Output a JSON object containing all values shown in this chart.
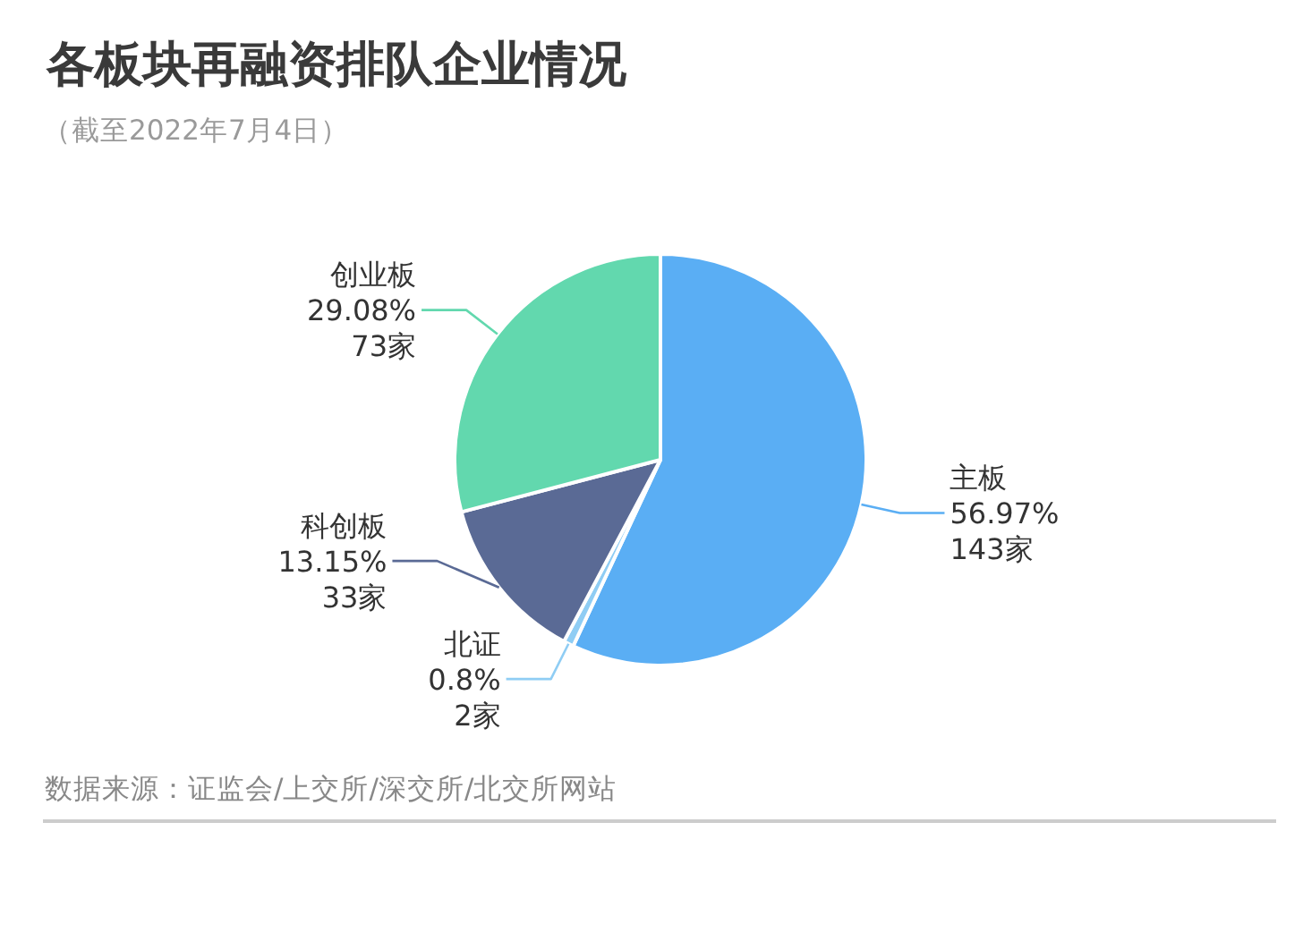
{
  "chart_data": {
    "type": "pie",
    "title": "各板块再融资排队企业情况",
    "subtitle": "（截至2022年7月4日）",
    "categories": [
      "主板",
      "北证",
      "科创板",
      "创业板"
    ],
    "values": [
      143,
      2,
      33,
      73
    ],
    "colors": [
      "#5aaef4",
      "#8fcdf4",
      "#5a6a95",
      "#62d8ae"
    ],
    "value_labels": [
      "56.97%\n143家",
      "0.8%\n2家",
      "13.15%\n33家",
      "29.08%\n73家"
    ],
    "annotations": [
      "数据来源：证监会/上交所/深交所/北交所网站"
    ]
  }
}
